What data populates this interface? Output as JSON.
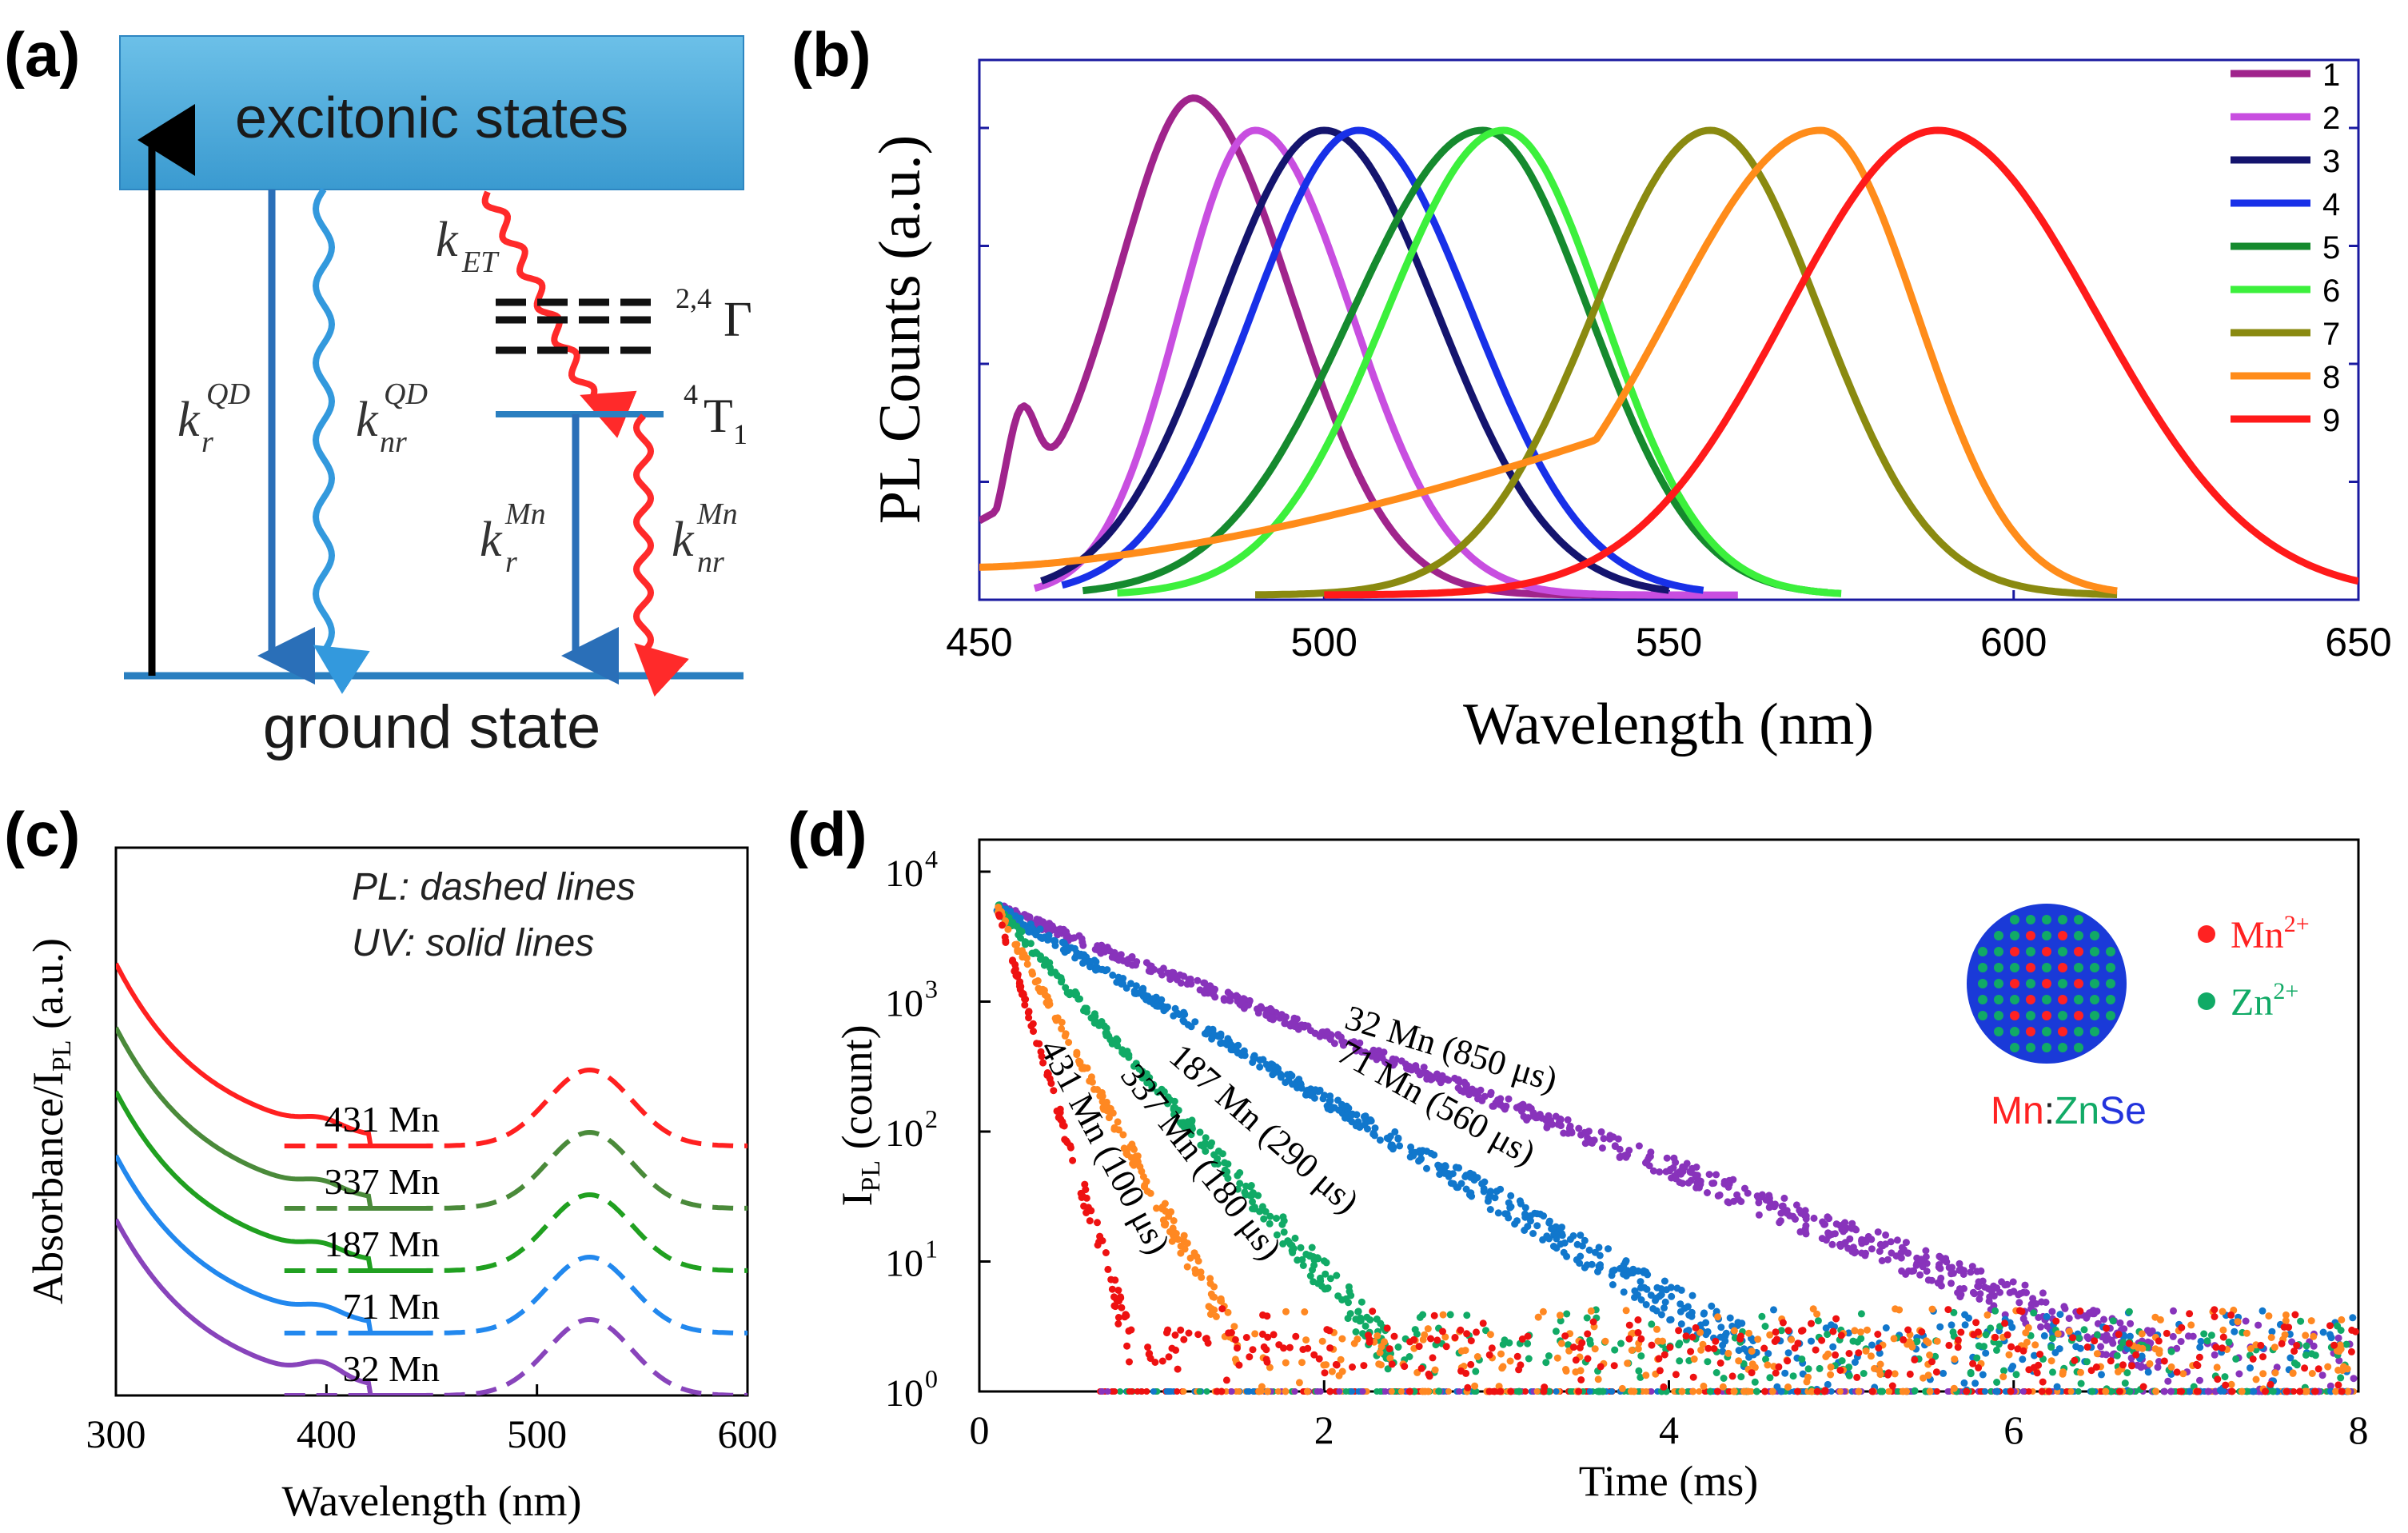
{
  "colors": {
    "box_fill": "#4aa8d8",
    "level_blue": "#2a7fc0",
    "arrow_black": "#000000",
    "arrow_red": "#ff2a2a",
    "wavy_blue": "#3399dd",
    "axis": "#000000",
    "plot_frame_b": "#1a1aa0"
  },
  "panel_labels": {
    "a": "(a)",
    "b": "(b)",
    "c": "(c)",
    "d": "(d)"
  },
  "panel_a": {
    "excitonic": "excitonic states",
    "ground": "ground state",
    "k": "k",
    "r": "r",
    "nr": "nr",
    "QD": "QD",
    "Mn": "Mn",
    "ET": "ET",
    "gamma_sup": "2,4",
    "gamma": "Γ",
    "t1_sup": "4",
    "t1": "T",
    "t1_sub": "1"
  },
  "chart_data": [
    {
      "id": "b",
      "type": "line",
      "title": "",
      "xlabel": "Wavelength (nm)",
      "ylabel": "PL Counts (a.u.)",
      "xlim": [
        450,
        650
      ],
      "ylim": [
        0,
        1.0
      ],
      "xticks": [
        450,
        500,
        550,
        600,
        650
      ],
      "legend_position": "top-right",
      "series": [
        {
          "name": "1",
          "color": "#a0248c",
          "peak": 482,
          "wl": 10.5,
          "wr": 14,
          "start": 450,
          "end": 555,
          "shoulder": true
        },
        {
          "name": "2",
          "color": "#c84ee0",
          "peak": 490,
          "wl": 11,
          "wr": 14,
          "start": 458,
          "end": 560
        },
        {
          "name": "3",
          "color": "#14146e",
          "peak": 500,
          "wl": 15.5,
          "wr": 16.5,
          "start": 459,
          "end": 550
        },
        {
          "name": "4",
          "color": "#1830e8",
          "peak": 505,
          "wl": 15.5,
          "wr": 16.5,
          "start": 462,
          "end": 555
        },
        {
          "name": "5",
          "color": "#158a2e",
          "peak": 523,
          "wl": 19,
          "wr": 15.5,
          "start": 465,
          "end": 573
        },
        {
          "name": "6",
          "color": "#3cf03c",
          "peak": 526,
          "wl": 17,
          "wr": 14.5,
          "start": 470,
          "end": 575
        },
        {
          "name": "7",
          "color": "#8a8a10",
          "peak": 556,
          "wl": 17,
          "wr": 16,
          "start": 490,
          "end": 615
        },
        {
          "name": "8",
          "color": "#ff8c1a",
          "peak": 572,
          "wl": 22,
          "wr": 14,
          "start": 450,
          "end": 615,
          "broad": true
        },
        {
          "name": "9",
          "color": "#ff1a1a",
          "peak": 589,
          "wl": 22,
          "wr": 23,
          "start": 500,
          "end": 650
        }
      ]
    },
    {
      "id": "c",
      "type": "line",
      "title": "",
      "xlabel": "Wavelength (nm)",
      "ylabel_main": "Absorbance/I",
      "ylabel_sub": "PL",
      "ylabel_tail": " (a.u.)",
      "xlim": [
        300,
        600
      ],
      "xticks": [
        300,
        400,
        500,
        600
      ],
      "annotations": [
        "PL: dashed lines",
        "UV: solid lines"
      ],
      "series": [
        {
          "name": "431 Mn",
          "color": "#ff2020",
          "offset": 4
        },
        {
          "name": "337 Mn",
          "color": "#4a8a3a",
          "offset": 3
        },
        {
          "name": "187 Mn",
          "color": "#20a020",
          "offset": 2
        },
        {
          "name": "71 Mn",
          "color": "#2288ee",
          "offset": 1
        },
        {
          "name": "32 Mn",
          "color": "#8844bb",
          "offset": 0
        }
      ]
    },
    {
      "id": "d",
      "type": "scatter",
      "title": "",
      "xlabel": "Time (ms)",
      "ylabel_main": "I",
      "ylabel_sub": "PL",
      "ylabel_tail": " (count)",
      "xlim": [
        0,
        8
      ],
      "ylim_log10": [
        0,
        4
      ],
      "xticks": [
        0,
        2,
        4,
        6,
        8
      ],
      "yticks": [
        "10",
        "10",
        "10",
        "10",
        "10"
      ],
      "ytick_exps": [
        "0",
        "1",
        "2",
        "3",
        "4"
      ],
      "series": [
        {
          "name": "32 Mn (850 μs)",
          "color": "#8833bb",
          "tau_ms": 0.85
        },
        {
          "name": "71 Mn (560 μs)",
          "color": "#1177cc",
          "tau_ms": 0.56
        },
        {
          "name": "187 Mn (290 μs)",
          "color": "#11aa66",
          "tau_ms": 0.29
        },
        {
          "name": "337 Mn (180 μs)",
          "color": "#ff8822",
          "tau_ms": 0.18
        },
        {
          "name": "431 Mn (100 μs)",
          "color": "#ee1111",
          "tau_ms": 0.1
        }
      ],
      "inset": {
        "mn_label": "Mn",
        "mn_sup": "2+",
        "zn_label": "Zn",
        "zn_sup": "2+",
        "caption_mn": "Mn",
        "caption_colon": ":",
        "caption_zn": "Zn",
        "caption_se": "Se",
        "mn_color": "#ff2222",
        "zn_color": "#11aa66",
        "se_color": "#2233dd"
      }
    }
  ]
}
